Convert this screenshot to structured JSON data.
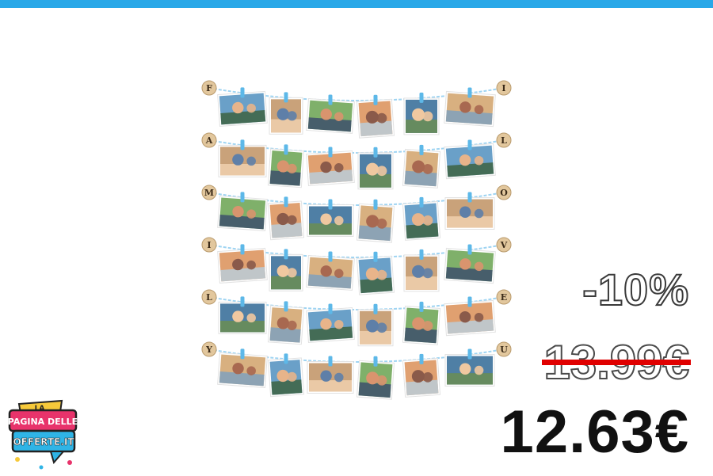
{
  "product": {
    "letters_left": [
      "F",
      "A",
      "M",
      "I",
      "L",
      "Y"
    ],
    "letters_right": [
      "I",
      "L",
      "O",
      "V",
      "E",
      "U"
    ],
    "colors": {
      "string": "#9fd4f2",
      "clip": "#5db8e8",
      "tag": "#e2c79d",
      "tag_text": "#3a2a18"
    }
  },
  "pricing": {
    "discount": "-10%",
    "old_price": "13.99€",
    "new_price": "12.63€"
  },
  "logo": {
    "line1": "LA",
    "line2": "PAGINA DELLE",
    "line3": "OFFERTE.IT"
  },
  "colors": {
    "accent_bar": "#29a8e8",
    "strike": "#e00000"
  }
}
